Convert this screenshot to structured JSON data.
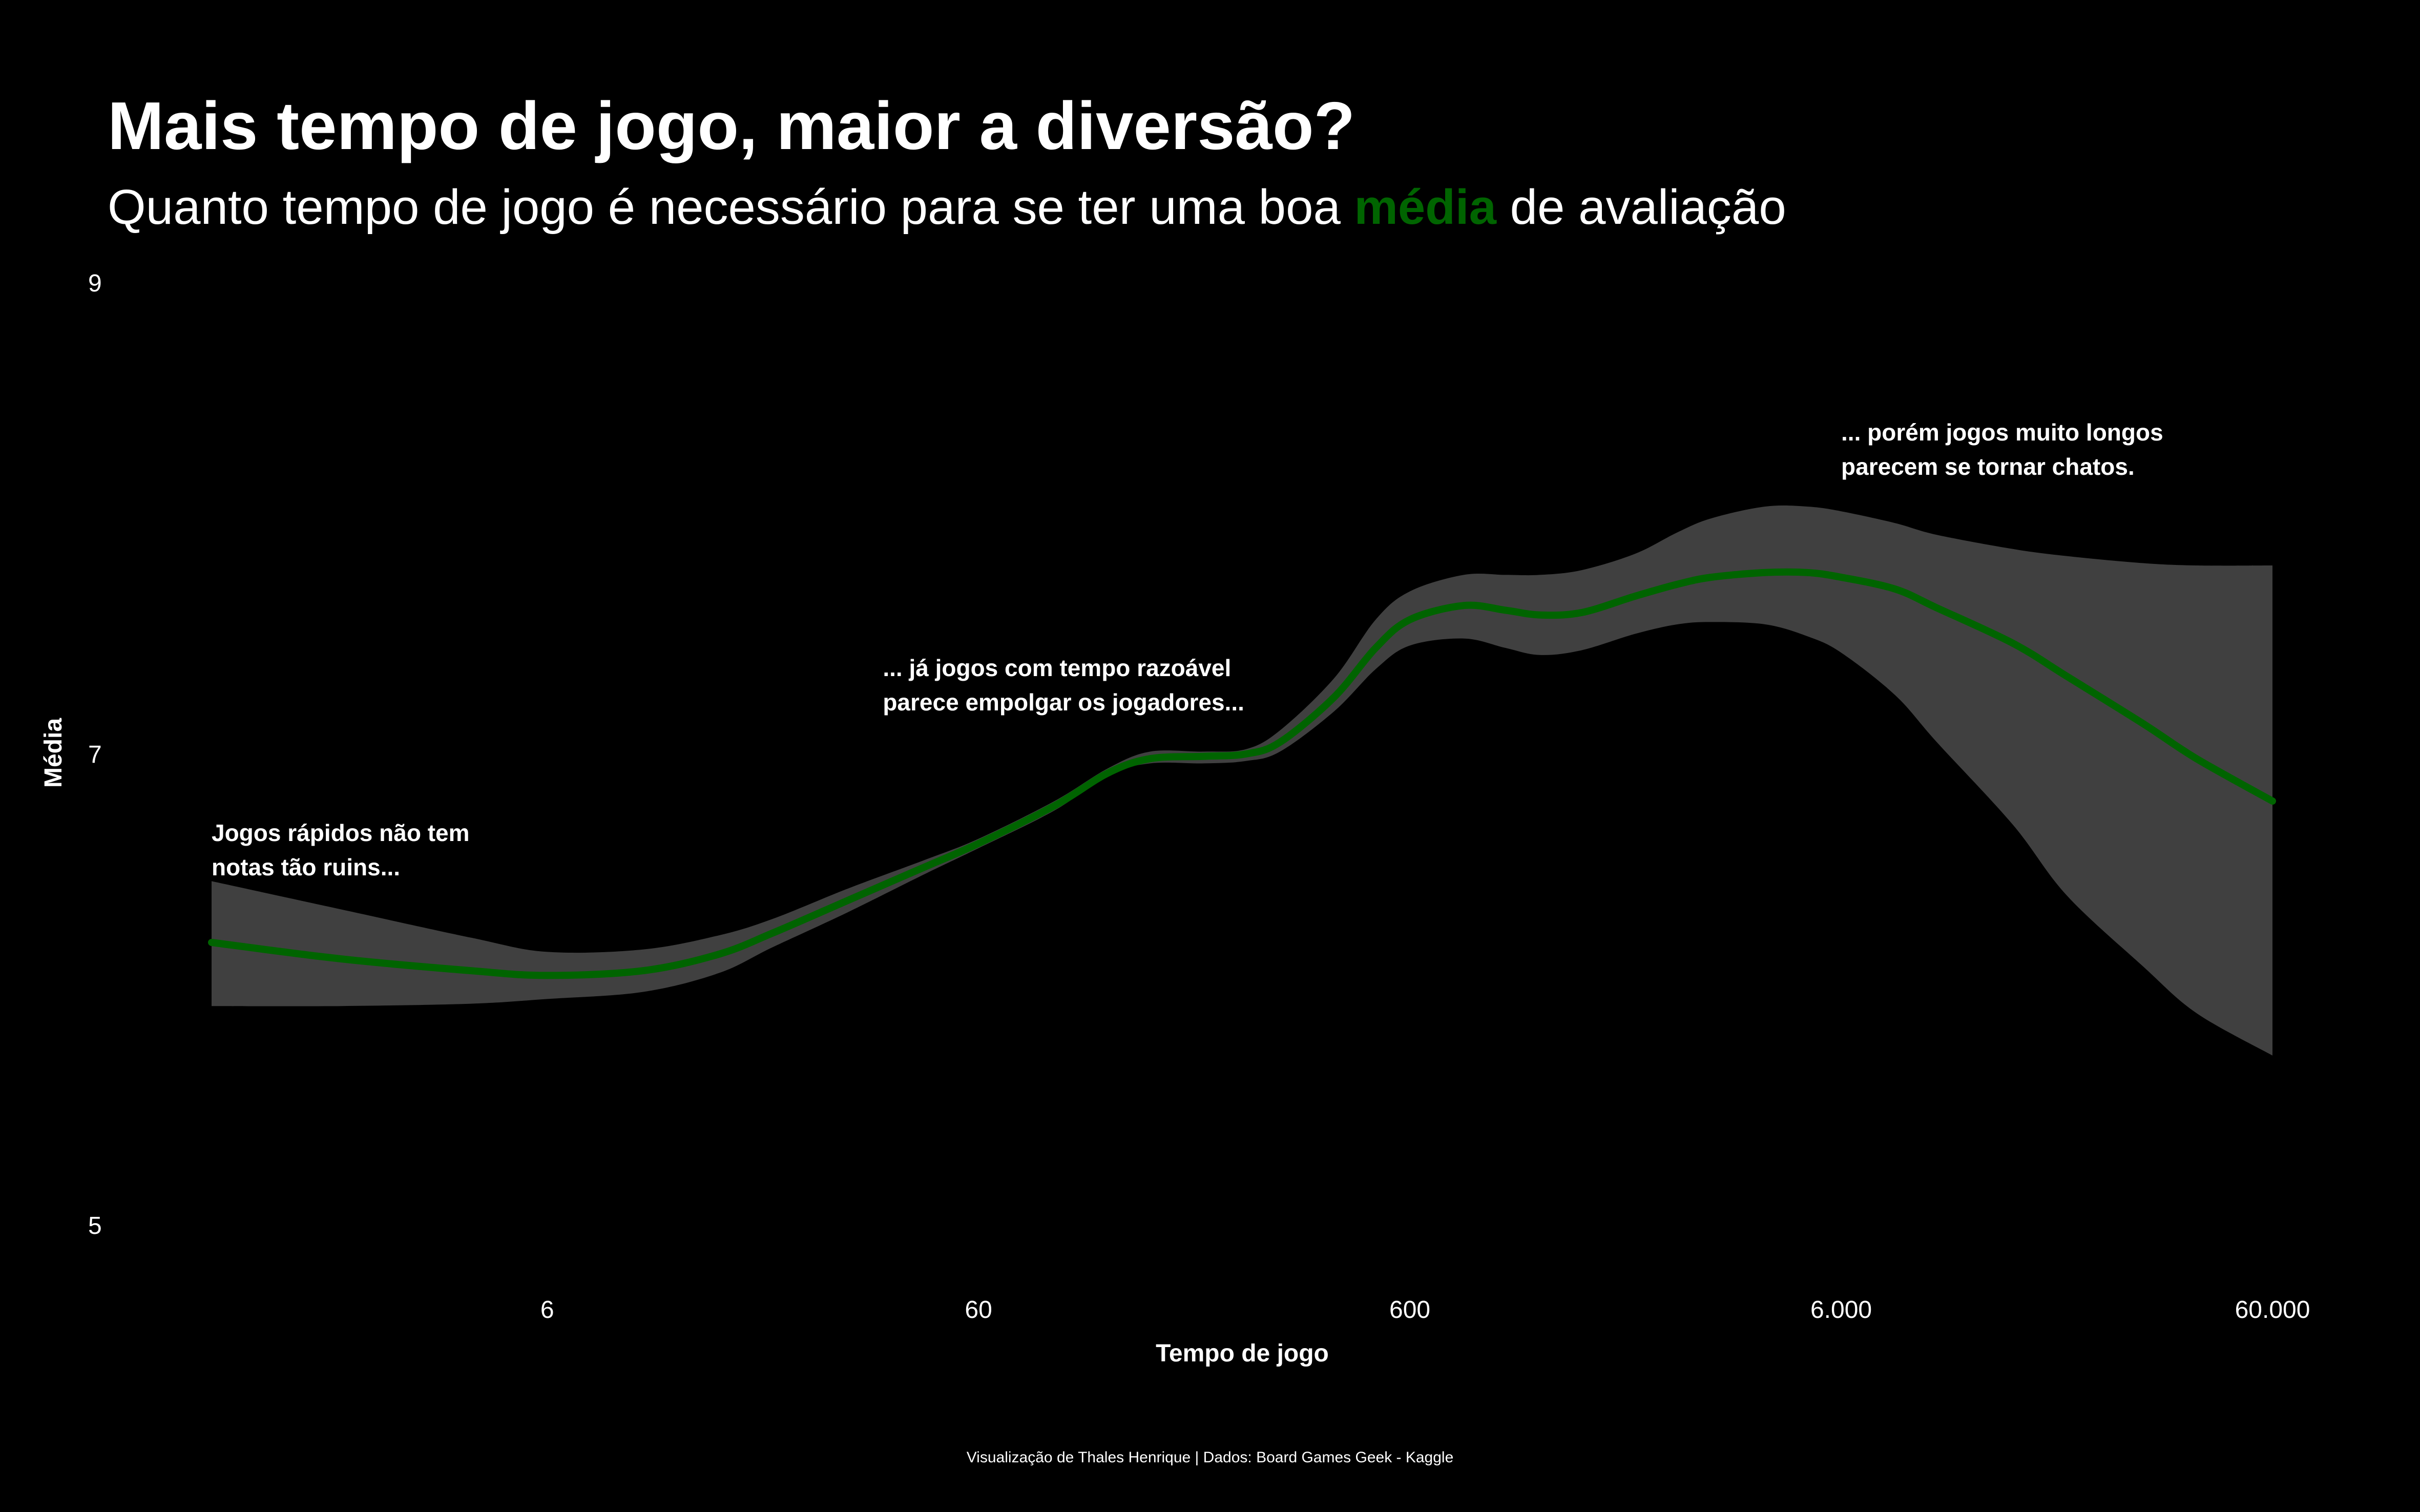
{
  "title": "Mais tempo de jogo, maior a diversão?",
  "subtitle": {
    "before": "Quanto tempo de jogo é necessário para se ter uma boa ",
    "highlight": "média",
    "after": " de avaliação"
  },
  "caption": "Visualização de Thales Henrique | Dados: Board Games Geek - Kaggle",
  "colors": {
    "background": "#000000",
    "text": "#ffffff",
    "accent": "#006400",
    "band": "#404040"
  },
  "chart_data": {
    "type": "line",
    "xlabel": "Tempo de jogo",
    "ylabel": "Média",
    "x_scale": "log10",
    "xlim": [
      1,
      60000
    ],
    "ylim": [
      5,
      9
    ],
    "x_ticks": [
      {
        "value": 6,
        "label": "6"
      },
      {
        "value": 60,
        "label": "60"
      },
      {
        "value": 600,
        "label": "600"
      },
      {
        "value": 6000,
        "label": "6.000"
      },
      {
        "value": 60000,
        "label": "60.000"
      }
    ],
    "y_ticks": [
      {
        "value": 5,
        "label": "5"
      },
      {
        "value": 7,
        "label": "7"
      },
      {
        "value": 9,
        "label": "9"
      }
    ],
    "grid": false,
    "legend": "none",
    "series": [
      {
        "color": "#006400",
        "x": [
          1,
          2,
          4,
          6,
          10,
          15,
          20,
          30,
          45,
          60,
          90,
          120,
          150,
          200,
          250,
          300,
          400,
          500,
          600,
          800,
          1000,
          1200,
          1500,
          2000,
          2500,
          3000,
          4000,
          5000,
          6000,
          8000,
          10000,
          15000,
          20000,
          30000,
          40000,
          60000
        ],
        "y": [
          6.2,
          6.13,
          6.08,
          6.06,
          6.08,
          6.15,
          6.24,
          6.38,
          6.52,
          6.62,
          6.78,
          6.92,
          6.98,
          6.99,
          7.0,
          7.05,
          7.24,
          7.45,
          7.57,
          7.63,
          7.61,
          7.59,
          7.6,
          7.67,
          7.72,
          7.75,
          7.77,
          7.77,
          7.75,
          7.7,
          7.62,
          7.47,
          7.33,
          7.13,
          6.98,
          6.8
        ],
        "ymin": [
          5.93,
          5.93,
          5.94,
          5.96,
          5.99,
          6.07,
          6.18,
          6.33,
          6.49,
          6.6,
          6.76,
          6.91,
          6.96,
          6.96,
          6.97,
          7.01,
          7.18,
          7.36,
          7.46,
          7.49,
          7.45,
          7.42,
          7.44,
          7.51,
          7.55,
          7.56,
          7.55,
          7.5,
          7.43,
          7.25,
          7.05,
          6.7,
          6.4,
          6.1,
          5.9,
          5.72
        ],
        "ymax": [
          6.46,
          6.34,
          6.22,
          6.16,
          6.17,
          6.23,
          6.3,
          6.43,
          6.55,
          6.64,
          6.8,
          6.94,
          7.01,
          7.01,
          7.02,
          7.1,
          7.32,
          7.57,
          7.69,
          7.76,
          7.76,
          7.76,
          7.78,
          7.85,
          7.94,
          8.0,
          8.05,
          8.05,
          8.03,
          7.98,
          7.93,
          7.87,
          7.84,
          7.81,
          7.8,
          7.8
        ]
      }
    ],
    "annotations": [
      {
        "x": 1,
        "y": 6.63,
        "lines": [
          "Jogos rápidos não tem",
          "notas tão ruins..."
        ]
      },
      {
        "x": 36,
        "y": 7.33,
        "lines": [
          "... já jogos com tempo razoável",
          "parece empolgar os jogadores..."
        ]
      },
      {
        "x": 6000,
        "y": 8.33,
        "lines": [
          "... porém jogos muito longos",
          "parecem se tornar chatos."
        ]
      }
    ]
  }
}
